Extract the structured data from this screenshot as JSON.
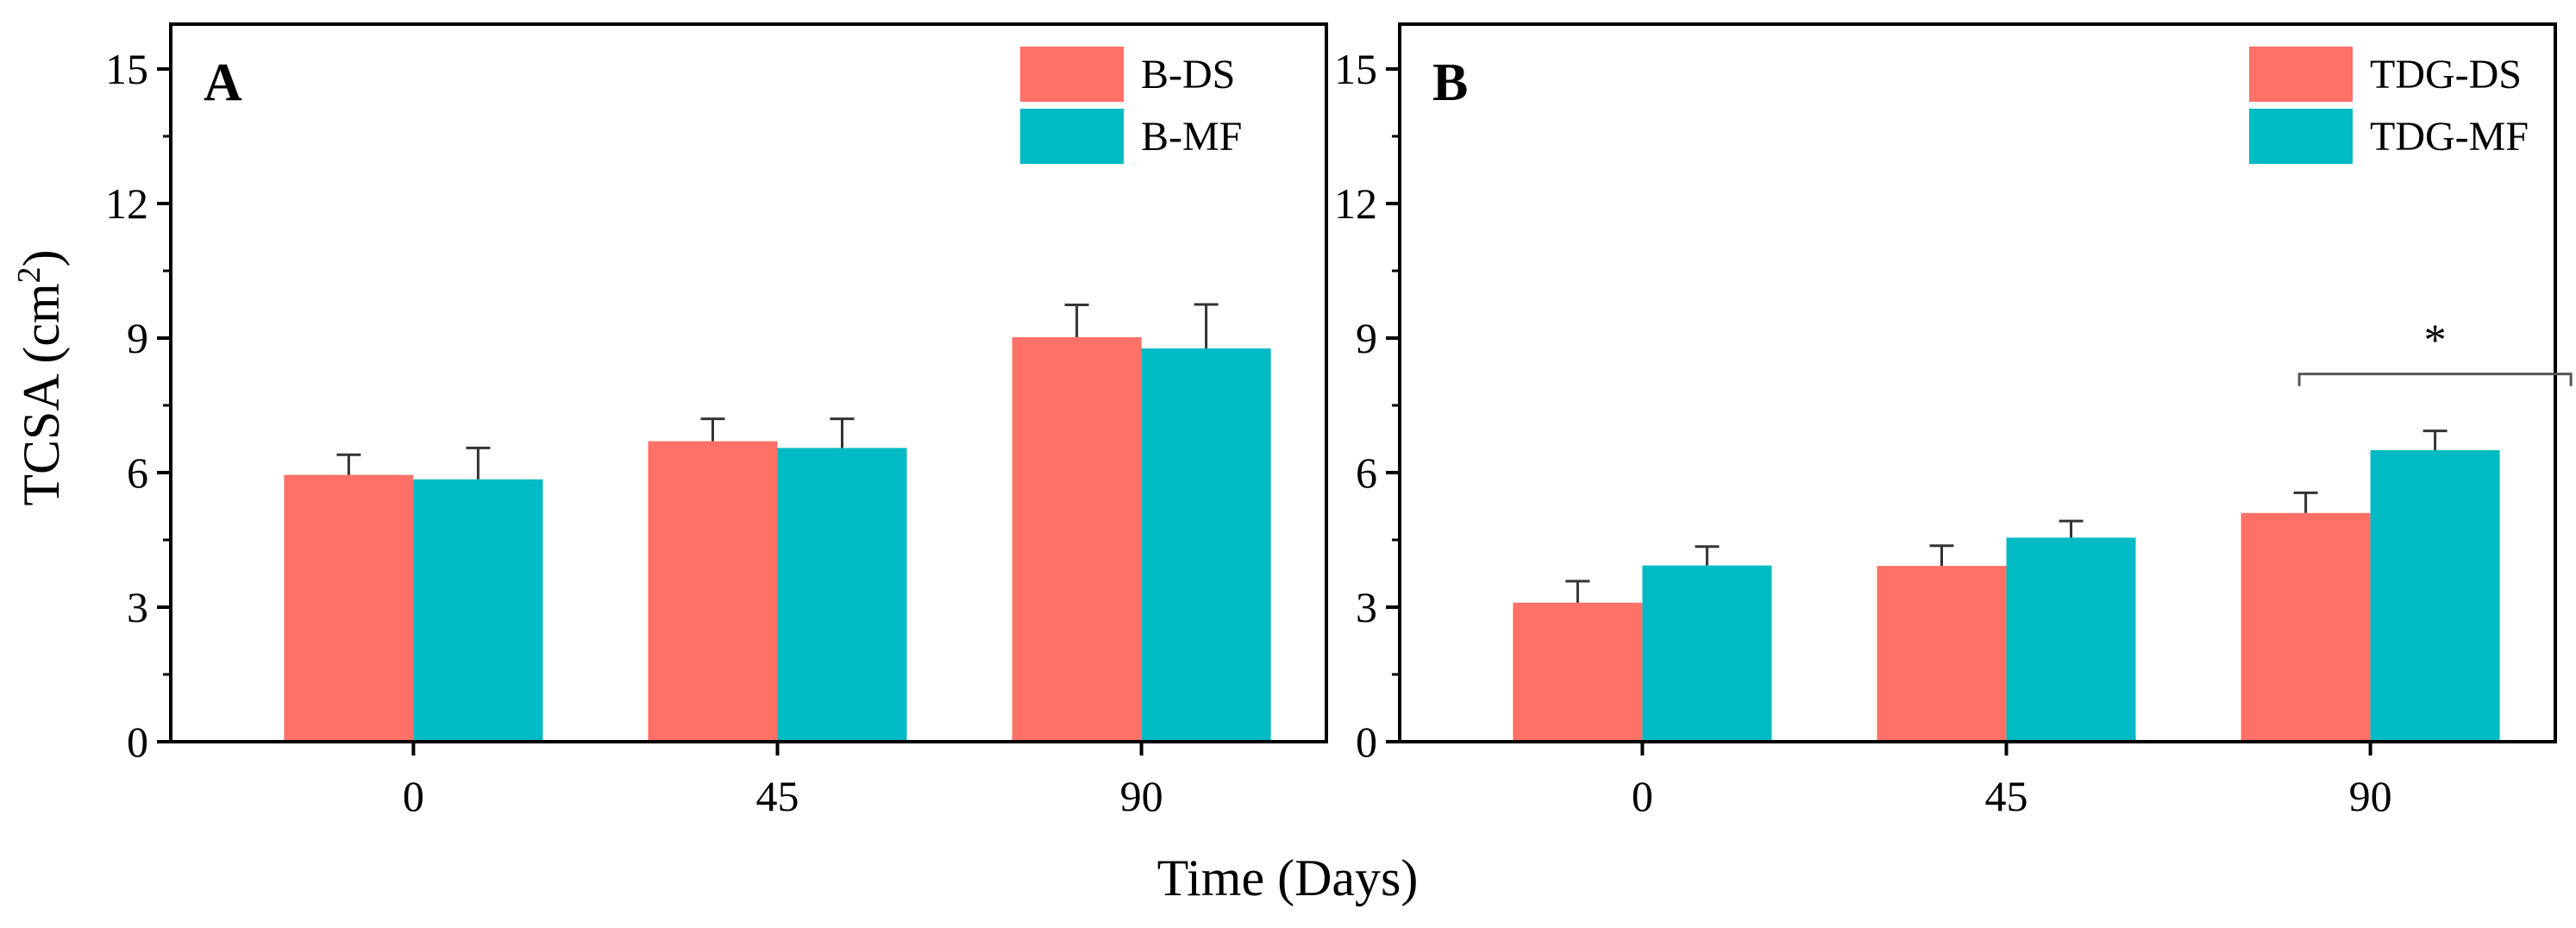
{
  "colors": {
    "ds": "#FF7066",
    "mf": "#00BAC4",
    "axis": "#000000",
    "bracket": "#555555"
  },
  "shared": {
    "xlabel": "Time (Days)",
    "ylabel_main": "TCSA (cm",
    "ylabel_sup": "2",
    "ylabel_end": ")"
  },
  "chart_data": [
    {
      "type": "bar",
      "panel_label": "A",
      "categories": [
        "0",
        "45",
        "90"
      ],
      "series": [
        {
          "name": "B-DS",
          "values": [
            5.95,
            6.7,
            9.02
          ],
          "errors": [
            0.45,
            0.5,
            0.72
          ]
        },
        {
          "name": "B-MF",
          "values": [
            5.85,
            6.55,
            8.77
          ],
          "errors": [
            0.7,
            0.65,
            0.98
          ]
        }
      ],
      "ylim": [
        0,
        16
      ],
      "yticks": [
        "0",
        "3",
        "6",
        "9",
        "12",
        "15"
      ],
      "legend": "top-right",
      "annotations": []
    },
    {
      "type": "bar",
      "panel_label": "B",
      "categories": [
        "0",
        "45",
        "90"
      ],
      "series": [
        {
          "name": "TDG-DS",
          "values": [
            3.1,
            3.92,
            5.1
          ],
          "errors": [
            0.48,
            0.45,
            0.45
          ]
        },
        {
          "name": "TDG-MF",
          "values": [
            3.93,
            4.55,
            6.5
          ],
          "errors": [
            0.42,
            0.37,
            0.43
          ]
        }
      ],
      "ylim": [
        0,
        16
      ],
      "yticks": [
        "0",
        "3",
        "6",
        "9",
        "12",
        "15"
      ],
      "legend": "top-right",
      "annotations": [
        {
          "text": "*",
          "category": "90",
          "type": "significance-bracket"
        }
      ]
    }
  ]
}
